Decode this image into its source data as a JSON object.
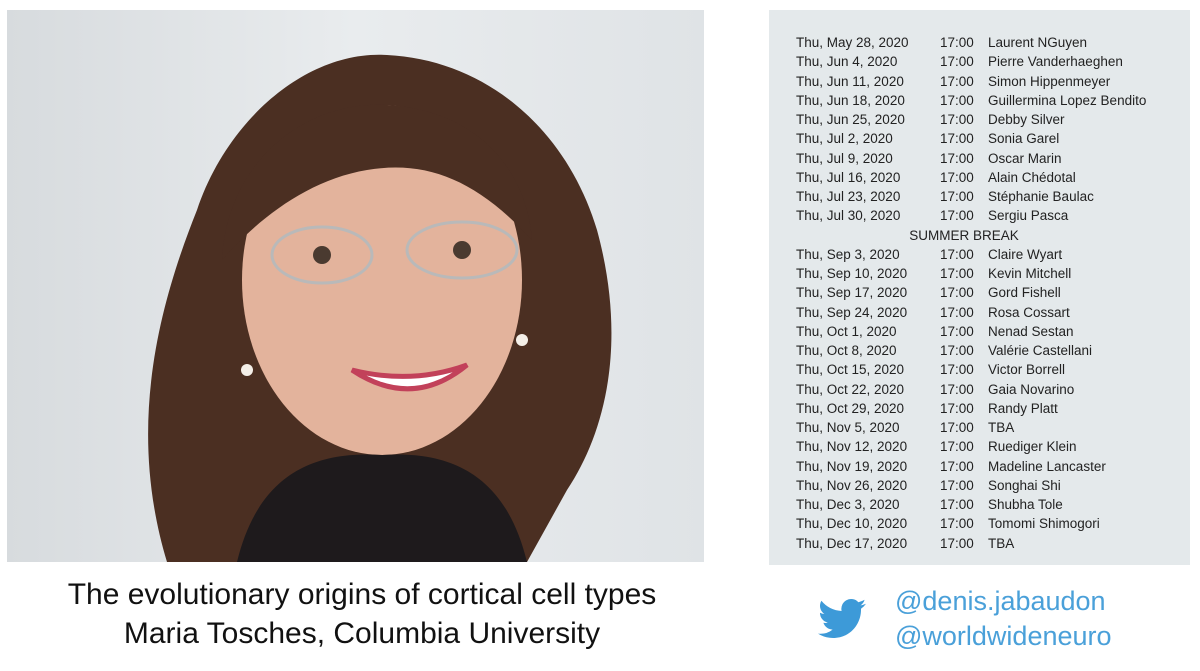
{
  "caption": {
    "title": "The evolutionary origins of cortical cell types",
    "speaker": "Maria Tosches, Columbia University"
  },
  "social": {
    "icon": "twitter-bird-icon",
    "color": "#4aa0d9",
    "handles": [
      "@denis.jabaudon",
      "@worldwideneuro"
    ]
  },
  "schedule": [
    {
      "date": "Thu, May 28, 2020",
      "time": "17:00",
      "speaker": "Laurent NGuyen"
    },
    {
      "date": "Thu, Jun 4, 2020",
      "time": "17:00",
      "speaker": "Pierre Vanderhaeghen"
    },
    {
      "date": "Thu, Jun 11, 2020",
      "time": "17:00",
      "speaker": "Simon Hippenmeyer"
    },
    {
      "date": "Thu, Jun 18, 2020",
      "time": "17:00",
      "speaker": "Guillermina Lopez Bendito"
    },
    {
      "date": "Thu, Jun 25, 2020",
      "time": "17:00",
      "speaker": "Debby Silver"
    },
    {
      "date": "Thu, Jul 2, 2020",
      "time": "17:00",
      "speaker": "Sonia Garel"
    },
    {
      "date": "Thu, Jul 9, 2020",
      "time": "17:00",
      "speaker": "Oscar Marin"
    },
    {
      "date": "Thu, Jul 16, 2020",
      "time": "17:00",
      "speaker": "Alain Chédotal"
    },
    {
      "date": "Thu, Jul 23, 2020",
      "time": "17:00",
      "speaker": "Stéphanie Baulac"
    },
    {
      "date": "Thu, Jul 30, 2020",
      "time": "17:00",
      "speaker": "Sergiu Pasca"
    },
    {
      "break": "SUMMER BREAK"
    },
    {
      "date": "Thu, Sep 3, 2020",
      "time": "17:00",
      "speaker": "Claire Wyart"
    },
    {
      "date": "Thu, Sep 10, 2020",
      "time": "17:00",
      "speaker": "Kevin Mitchell"
    },
    {
      "date": "Thu, Sep 17, 2020",
      "time": "17:00",
      "speaker": "Gord Fishell"
    },
    {
      "date": "Thu, Sep 24, 2020",
      "time": "17:00",
      "speaker": "Rosa Cossart"
    },
    {
      "date": "Thu, Oct 1, 2020",
      "time": "17:00",
      "speaker": "Nenad Sestan"
    },
    {
      "date": "Thu, Oct 8, 2020",
      "time": "17:00",
      "speaker": "Valérie Castellani"
    },
    {
      "date": "Thu, Oct 15, 2020",
      "time": "17:00",
      "speaker": "Victor Borrell"
    },
    {
      "date": "Thu, Oct 22, 2020",
      "time": "17:00",
      "speaker": "Gaia Novarino"
    },
    {
      "date": "Thu, Oct 29, 2020",
      "time": "17:00",
      "speaker": "Randy Platt"
    },
    {
      "date": "Thu, Nov 5, 2020",
      "time": "17:00",
      "speaker": "TBA"
    },
    {
      "date": "Thu, Nov 12, 2020",
      "time": "17:00",
      "speaker": "Ruediger Klein"
    },
    {
      "date": "Thu, Nov 19, 2020",
      "time": "17:00",
      "speaker": "Madeline Lancaster"
    },
    {
      "date": "Thu, Nov 26, 2020",
      "time": "17:00",
      "speaker": "Songhai Shi"
    },
    {
      "date": "Thu, Dec 3, 2020",
      "time": "17:00",
      "speaker": "Shubha Tole"
    },
    {
      "date": "Thu, Dec 10, 2020",
      "time": "17:00",
      "speaker": "Tomomi Shimogori"
    },
    {
      "date": "Thu, Dec 17, 2020",
      "time": "17:00",
      "speaker": "TBA"
    }
  ]
}
